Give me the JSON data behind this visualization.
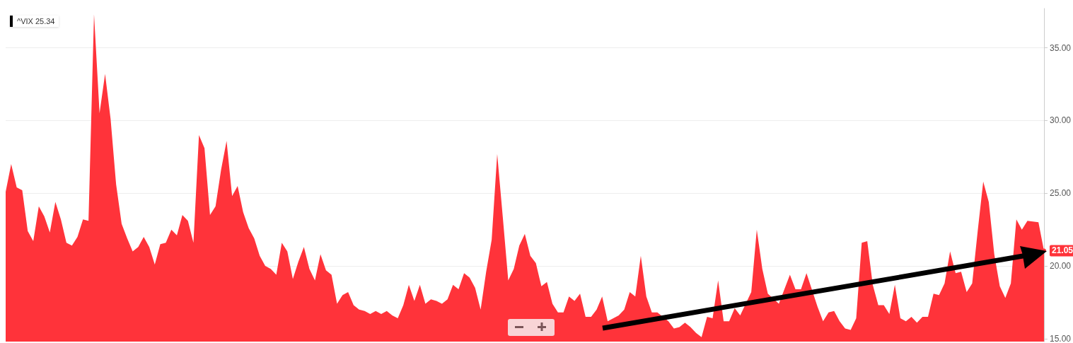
{
  "chart_data": {
    "type": "area",
    "annotations": [
      "^VIX 25.34"
    ],
    "categories": [
      null,
      null,
      null,
      null,
      null,
      null,
      null,
      null,
      null,
      null,
      null,
      null,
      null,
      null,
      null,
      null,
      null,
      null,
      null,
      null,
      null,
      null,
      null,
      null,
      null,
      null,
      null,
      null,
      null,
      null,
      null,
      null,
      null,
      null,
      null,
      null,
      null,
      null,
      null,
      null,
      null,
      null,
      null,
      null,
      null,
      null,
      null,
      null,
      null,
      null,
      null,
      null,
      null,
      null,
      null,
      null,
      null,
      null,
      null,
      null,
      null,
      null,
      null,
      null,
      null,
      null,
      null,
      null,
      null,
      null,
      null,
      null,
      null,
      null,
      null,
      null,
      null,
      null,
      null,
      null,
      null,
      null,
      null,
      null,
      null,
      null,
      null,
      null,
      null,
      null,
      null,
      null,
      null,
      null,
      null,
      null,
      null,
      null,
      null,
      null,
      null,
      null,
      null,
      null,
      null,
      null,
      null,
      null,
      null,
      null,
      null,
      null,
      null,
      null,
      null,
      null,
      null,
      null,
      null,
      null,
      null,
      null,
      null,
      null,
      null,
      null,
      null,
      null,
      null,
      null,
      null,
      null,
      null,
      null,
      null,
      null,
      null,
      null,
      null,
      null,
      null,
      null,
      null,
      null,
      null,
      null,
      null,
      null,
      null,
      null,
      null,
      null,
      null,
      null,
      null,
      null,
      null,
      null,
      null,
      null,
      null,
      null,
      null,
      null,
      null,
      null,
      null,
      null,
      null,
      null,
      null,
      null,
      null,
      null,
      null,
      null,
      null,
      null,
      null,
      null,
      null,
      null,
      null,
      null,
      null,
      null,
      null,
      null,
      null
    ],
    "series": [
      {
        "color": "#ff333a",
        "values": [
          25.1,
          27.0,
          25.4,
          25.2,
          22.4,
          21.7,
          24.1,
          23.4,
          22.3,
          24.4,
          23.2,
          21.6,
          21.4,
          22.0,
          23.2,
          23.1,
          37.3,
          30.5,
          33.2,
          30.1,
          25.6,
          22.9,
          21.9,
          21.0,
          21.3,
          22.0,
          21.3,
          20.1,
          21.5,
          21.6,
          22.5,
          22.1,
          23.5,
          23.1,
          21.6,
          29.0,
          28.1,
          23.5,
          24.1,
          26.6,
          28.6,
          24.8,
          25.5,
          23.7,
          22.6,
          21.9,
          20.7,
          20.0,
          19.8,
          19.4,
          21.6,
          21.0,
          19.1,
          20.3,
          21.3,
          19.8,
          19.0,
          20.8,
          19.7,
          19.4,
          17.4,
          18.0,
          18.2,
          17.3,
          17.0,
          16.9,
          16.7,
          16.9,
          16.7,
          16.9,
          16.6,
          16.4,
          17.3,
          18.7,
          17.6,
          18.7,
          17.4,
          17.7,
          17.6,
          17.4,
          17.7,
          18.7,
          18.4,
          19.5,
          19.2,
          18.5,
          17.0,
          19.6,
          21.8,
          27.7,
          23.4,
          19.0,
          19.8,
          21.4,
          22.2,
          20.7,
          20.2,
          18.6,
          18.9,
          17.4,
          16.8,
          16.8,
          17.9,
          17.6,
          18.1,
          16.5,
          16.5,
          17.0,
          17.9,
          16.2,
          null,
          16.6,
          17.0,
          18.2,
          17.9,
          20.7,
          17.9,
          16.8,
          16.8,
          null,
          16.2,
          15.7,
          15.8,
          16.1,
          15.8,
          15.4,
          15.1,
          16.5,
          16.4,
          19.0,
          16.2,
          16.2,
          17.1,
          16.6,
          null,
          18.2,
          22.5,
          19.8,
          18.1,
          null,
          17.4,
          null,
          19.4,
          18.4,
          18.4,
          19.5,
          null,
          17.2,
          16.2,
          16.8,
          16.9,
          16.2,
          15.7,
          15.6,
          16.4,
          21.6,
          21.7,
          18.7,
          17.3,
          17.3,
          16.7,
          18.7,
          16.4,
          16.2,
          16.5,
          16.1,
          16.5,
          16.5,
          18.1,
          18.0,
          18.8,
          21.0,
          19.5,
          19.6,
          18.2,
          18.8,
          22.4,
          25.8,
          24.4,
          20.8,
          18.6,
          17.8,
          18.8,
          23.2,
          22.5,
          23.1,
          null,
          23.0,
          21.05
        ],
        "value_labels": [
          null,
          null,
          null,
          null,
          null,
          null,
          null,
          null,
          null,
          null,
          null,
          null,
          null,
          null,
          null,
          null,
          null,
          null,
          null,
          null,
          null,
          null,
          null,
          null,
          null,
          null,
          null,
          null,
          null,
          null,
          null,
          null,
          null,
          null,
          null,
          null,
          null,
          null,
          null,
          null,
          null,
          null,
          null,
          null,
          null,
          null,
          null,
          null,
          null,
          null,
          null,
          null,
          null,
          null,
          null,
          null,
          null,
          null,
          null,
          null,
          null,
          null,
          null,
          null,
          null,
          null,
          null,
          null,
          null,
          null,
          null,
          null,
          null,
          null,
          null,
          null,
          null,
          null,
          null,
          null,
          null,
          null,
          null,
          null,
          null,
          null,
          null,
          null,
          null,
          null,
          null,
          null,
          null,
          null,
          null,
          null,
          null,
          null,
          null,
          null,
          null,
          null,
          null,
          null,
          null,
          null,
          null,
          null,
          null,
          null,
          null,
          null,
          null,
          null,
          null,
          null,
          null,
          null,
          null,
          null,
          null,
          null,
          null,
          null,
          null,
          null,
          null,
          null,
          null,
          null,
          null,
          null,
          null,
          null,
          null,
          null,
          null,
          null,
          null,
          null,
          null,
          null,
          null,
          null,
          null,
          null,
          null,
          null,
          null,
          null,
          null,
          null,
          null,
          null,
          null,
          null,
          null,
          null,
          null,
          null,
          null,
          null,
          null,
          null,
          null,
          null,
          null,
          null,
          null,
          null,
          null,
          null,
          null,
          null,
          null,
          null,
          null,
          null,
          null,
          null,
          null,
          null,
          null,
          null,
          null,
          null,
          null,
          null,
          "21.05"
        ]
      }
    ],
    "ylim": [
      14.8,
      37.7
    ],
    "yticks": [
      {
        "value": 15,
        "label": "15.00"
      },
      {
        "value": 20,
        "label": "20.00"
      },
      {
        "value": 25,
        "label": "25.00"
      },
      {
        "value": 30,
        "label": "30.00"
      },
      {
        "value": 35,
        "label": "35.00"
      }
    ],
    "grid": "y",
    "tick_labels": "y"
  }
}
